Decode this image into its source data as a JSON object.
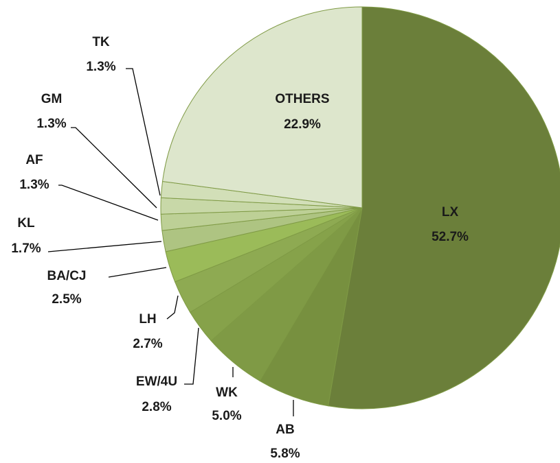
{
  "chart_data": {
    "type": "pie",
    "categories": [
      "LX",
      "AB",
      "WK",
      "EW/4U",
      "LH",
      "BA/CJ",
      "KL",
      "AF",
      "GM",
      "TK",
      "OTHERS"
    ],
    "values": [
      52.7,
      5.8,
      5.0,
      2.8,
      2.7,
      2.5,
      1.7,
      1.3,
      1.3,
      1.3,
      22.9
    ],
    "value_labels": [
      "52.7%",
      "5.8%",
      "5.0%",
      "2.8%",
      "2.7%",
      "2.5%",
      "1.7%",
      "1.3%",
      "1.3%",
      "1.3%",
      "22.9%"
    ],
    "colors": [
      "#6b7f3a",
      "#77903f",
      "#7f9a45",
      "#86a24a",
      "#8eaa52",
      "#9bbb59",
      "#aec482",
      "#bdd096",
      "#c8d8a8",
      "#d2dfb8",
      "#dde6cc"
    ]
  }
}
